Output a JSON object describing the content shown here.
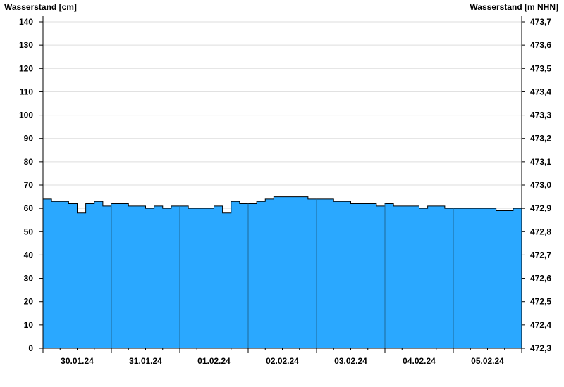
{
  "chart_data": {
    "type": "area",
    "ylabel_left": "Wasserstand [cm]",
    "ylabel_right": "Wasserstand [m NHN]",
    "ylim_left": [
      0,
      140
    ],
    "ylim_right": [
      472.3,
      473.7
    ],
    "yticks_left": [
      "0",
      "10",
      "20",
      "30",
      "40",
      "50",
      "60",
      "70",
      "80",
      "90",
      "100",
      "110",
      "120",
      "130",
      "140"
    ],
    "yticks_right": [
      "472,3",
      "472,4",
      "472,5",
      "472,6",
      "472,7",
      "472,8",
      "472,9",
      "473,0",
      "473,1",
      "473,2",
      "473,3",
      "473,4",
      "473,5",
      "473,6",
      "473,7"
    ],
    "xticks": [
      "30.01.24",
      "31.01.24",
      "01.02.24",
      "02.02.24",
      "03.02.24",
      "04.02.24",
      "05.02.24"
    ],
    "xlim": [
      "2024-01-30 00:00",
      "2024-02-06 00:00"
    ],
    "grid": true,
    "colors": {
      "fill": "#2aa8ff",
      "line": "#000000",
      "day_separator": "#1f6a9a",
      "grid": "#dddddd"
    },
    "x": [
      "2024-01-30 00:00",
      "2024-01-30 03:00",
      "2024-01-30 06:00",
      "2024-01-30 09:00",
      "2024-01-30 12:00",
      "2024-01-30 15:00",
      "2024-01-30 18:00",
      "2024-01-30 21:00",
      "2024-01-31 00:00",
      "2024-01-31 03:00",
      "2024-01-31 06:00",
      "2024-01-31 09:00",
      "2024-01-31 12:00",
      "2024-01-31 15:00",
      "2024-01-31 18:00",
      "2024-01-31 21:00",
      "2024-02-01 00:00",
      "2024-02-01 03:00",
      "2024-02-01 06:00",
      "2024-02-01 09:00",
      "2024-02-01 12:00",
      "2024-02-01 15:00",
      "2024-02-01 18:00",
      "2024-02-01 21:00",
      "2024-02-02 00:00",
      "2024-02-02 03:00",
      "2024-02-02 06:00",
      "2024-02-02 09:00",
      "2024-02-02 12:00",
      "2024-02-02 15:00",
      "2024-02-02 18:00",
      "2024-02-02 21:00",
      "2024-02-03 00:00",
      "2024-02-03 03:00",
      "2024-02-03 06:00",
      "2024-02-03 09:00",
      "2024-02-03 12:00",
      "2024-02-03 15:00",
      "2024-02-03 18:00",
      "2024-02-03 21:00",
      "2024-02-04 00:00",
      "2024-02-04 03:00",
      "2024-02-04 06:00",
      "2024-02-04 09:00",
      "2024-02-04 12:00",
      "2024-02-04 15:00",
      "2024-02-04 18:00",
      "2024-02-04 21:00",
      "2024-02-05 00:00",
      "2024-02-05 03:00",
      "2024-02-05 06:00",
      "2024-02-05 09:00",
      "2024-02-05 12:00",
      "2024-02-05 15:00",
      "2024-02-05 18:00",
      "2024-02-05 21:00",
      "2024-02-06 00:00"
    ],
    "values": [
      64,
      63,
      63,
      62,
      58,
      62,
      63,
      61,
      62,
      62,
      61,
      61,
      60,
      61,
      60,
      61,
      61,
      60,
      60,
      60,
      61,
      58,
      63,
      62,
      62,
      63,
      64,
      65,
      65,
      65,
      65,
      64,
      64,
      64,
      63,
      63,
      62,
      62,
      62,
      61,
      62,
      61,
      61,
      61,
      60,
      61,
      61,
      60,
      60,
      60,
      60,
      60,
      60,
      59,
      59,
      60,
      58
    ]
  }
}
